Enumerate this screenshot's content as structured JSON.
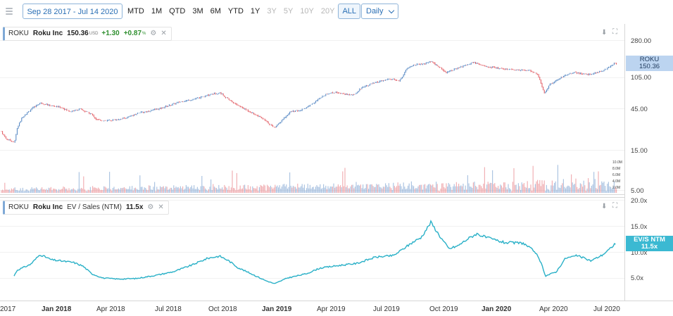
{
  "toolbar": {
    "date_range": "Sep 28 2017 - Jul 14 2020",
    "ranges": [
      "MTD",
      "1M",
      "QTD",
      "3M",
      "6M",
      "YTD",
      "1Y",
      "3Y",
      "5Y",
      "10Y",
      "20Y",
      "ALL"
    ],
    "disabled_ranges": [
      "3Y",
      "5Y",
      "10Y",
      "20Y"
    ],
    "active_range": "ALL",
    "interval": "Daily"
  },
  "price_legend": {
    "ticker": "ROKU",
    "name": "Roku Inc",
    "price": "150.36",
    "currency": "USD",
    "change": "+1.30",
    "change_pct": "+0.87",
    "pct_sign": "%"
  },
  "evs_legend": {
    "ticker": "ROKU",
    "name": "Roku Inc",
    "metric": "EV / Sales (NTM)",
    "value": "11.5x"
  },
  "price_tag": {
    "line1": "ROKU",
    "line2": "150.36"
  },
  "evs_tag": {
    "line1": "EV/S NTM",
    "line2": "11.5x"
  },
  "colors": {
    "up": "#4a7fbf",
    "down": "#e0525a",
    "evs_line": "#29b0c7",
    "tag_price": "#bcd4f0",
    "tag_evs": "#3bb9d2"
  },
  "chart_data": [
    {
      "type": "line",
      "title": "ROKU price (candlestick, log scale)",
      "y_scale": "log",
      "y_ticks": [
        "280.00",
        "105.00",
        "45.00",
        "15.00",
        "5.00"
      ],
      "x_ticks": [
        "2017",
        "Jan 2018",
        "Apr 2018",
        "Jul 2018",
        "Oct 2018",
        "Jan 2019",
        "Apr 2019",
        "Jul 2019",
        "Oct 2019",
        "Jan 2020",
        "Apr 2020",
        "Jul 2020"
      ],
      "x_tick_years": [
        "2017",
        "Jan 2018",
        "Jan 2019",
        "Jan 2020"
      ],
      "series": [
        {
          "name": "ROKU",
          "points": [
            [
              "2017-09-28",
              24
            ],
            [
              "2017-10-05",
              20
            ],
            [
              "2017-10-20",
              18
            ],
            [
              "2017-10-24",
              26
            ],
            [
              "2017-11-01",
              35
            ],
            [
              "2017-11-15",
              43
            ],
            [
              "2017-12-01",
              52
            ],
            [
              "2017-12-20",
              48
            ],
            [
              "2018-01-05",
              46
            ],
            [
              "2018-01-20",
              41
            ],
            [
              "2018-02-05",
              44
            ],
            [
              "2018-02-25",
              38
            ],
            [
              "2018-03-05",
              33
            ],
            [
              "2018-03-20",
              32
            ],
            [
              "2018-04-05",
              33
            ],
            [
              "2018-04-25",
              35
            ],
            [
              "2018-05-10",
              39
            ],
            [
              "2018-06-01",
              42
            ],
            [
              "2018-06-20",
              45
            ],
            [
              "2018-07-05",
              49
            ],
            [
              "2018-07-20",
              53
            ],
            [
              "2018-08-10",
              57
            ],
            [
              "2018-08-25",
              60
            ],
            [
              "2018-09-12",
              66
            ],
            [
              "2018-09-26",
              68
            ],
            [
              "2018-10-08",
              58
            ],
            [
              "2018-10-20",
              51
            ],
            [
              "2018-11-05",
              44
            ],
            [
              "2018-11-20",
              39
            ],
            [
              "2018-12-05",
              34
            ],
            [
              "2018-12-20",
              28
            ],
            [
              "2018-12-25",
              27
            ],
            [
              "2019-01-05",
              32
            ],
            [
              "2019-01-20",
              41
            ],
            [
              "2019-02-05",
              42
            ],
            [
              "2019-02-20",
              48
            ],
            [
              "2019-03-05",
              55
            ],
            [
              "2019-03-20",
              66
            ],
            [
              "2019-04-05",
              69
            ],
            [
              "2019-04-20",
              66
            ],
            [
              "2019-05-05",
              64
            ],
            [
              "2019-05-20",
              80
            ],
            [
              "2019-06-05",
              87
            ],
            [
              "2019-06-20",
              93
            ],
            [
              "2019-07-05",
              99
            ],
            [
              "2019-07-20",
              93
            ],
            [
              "2019-08-01",
              130
            ],
            [
              "2019-08-15",
              145
            ],
            [
              "2019-08-28",
              146
            ],
            [
              "2019-09-10",
              158
            ],
            [
              "2019-09-24",
              135
            ],
            [
              "2019-10-05",
              118
            ],
            [
              "2019-10-20",
              128
            ],
            [
              "2019-11-05",
              141
            ],
            [
              "2019-11-20",
              155
            ],
            [
              "2019-12-05",
              140
            ],
            [
              "2019-12-20",
              135
            ],
            [
              "2020-01-05",
              130
            ],
            [
              "2020-01-20",
              127
            ],
            [
              "2020-02-05",
              125
            ],
            [
              "2020-02-20",
              125
            ],
            [
              "2020-03-05",
              112
            ],
            [
              "2020-03-16",
              67
            ],
            [
              "2020-03-25",
              85
            ],
            [
              "2020-04-05",
              95
            ],
            [
              "2020-04-20",
              110
            ],
            [
              "2020-05-05",
              118
            ],
            [
              "2020-05-20",
              112
            ],
            [
              "2020-06-05",
              113
            ],
            [
              "2020-06-20",
              122
            ],
            [
              "2020-07-05",
              140
            ],
            [
              "2020-07-10",
              150.36
            ]
          ]
        }
      ]
    },
    {
      "type": "bar",
      "title": "Volume",
      "y_ticks": [
        "10.0M",
        "8.0M",
        "6.0M",
        "4.0M",
        "2.0M"
      ],
      "note": "daily volume bars, blue = up day, red = down day"
    },
    {
      "type": "line",
      "title": "EV / Sales (NTM)",
      "y_ticks": [
        "20.0x",
        "15.0x",
        "10.0x",
        "5.0x"
      ],
      "series": [
        {
          "name": "EV/S NTM",
          "points": [
            [
              "2017-09-28",
              4.6
            ],
            [
              "2017-10-15",
              4.5
            ],
            [
              "2017-10-24",
              6.5
            ],
            [
              "2017-11-15",
              7.6
            ],
            [
              "2017-12-01",
              9.5
            ],
            [
              "2017-12-20",
              8.5
            ],
            [
              "2018-01-10",
              8.2
            ],
            [
              "2018-01-25",
              8.0
            ],
            [
              "2018-02-10",
              7.3
            ],
            [
              "2018-02-25",
              5.8
            ],
            [
              "2018-03-15",
              5.0
            ],
            [
              "2018-04-10",
              4.8
            ],
            [
              "2018-05-10",
              4.9
            ],
            [
              "2018-06-10",
              5.5
            ],
            [
              "2018-07-10",
              6.2
            ],
            [
              "2018-08-10",
              7.5
            ],
            [
              "2018-09-05",
              8.8
            ],
            [
              "2018-09-25",
              9.2
            ],
            [
              "2018-10-10",
              8.3
            ],
            [
              "2018-10-25",
              7.0
            ],
            [
              "2018-11-20",
              5.6
            ],
            [
              "2018-12-10",
              4.5
            ],
            [
              "2018-12-25",
              3.9
            ],
            [
              "2019-01-15",
              5.0
            ],
            [
              "2019-02-15",
              5.8
            ],
            [
              "2019-03-10",
              6.9
            ],
            [
              "2019-04-10",
              7.4
            ],
            [
              "2019-05-10",
              7.8
            ],
            [
              "2019-06-10",
              9.0
            ],
            [
              "2019-07-10",
              9.3
            ],
            [
              "2019-07-25",
              10.5
            ],
            [
              "2019-08-10",
              11.8
            ],
            [
              "2019-08-25",
              12.8
            ],
            [
              "2019-09-10",
              15.7
            ],
            [
              "2019-09-25",
              13.0
            ],
            [
              "2019-10-10",
              10.6
            ],
            [
              "2019-10-25",
              11.2
            ],
            [
              "2019-11-10",
              12.5
            ],
            [
              "2019-11-25",
              13.5
            ],
            [
              "2019-12-10",
              12.8
            ],
            [
              "2020-01-10",
              11.8
            ],
            [
              "2020-02-10",
              11.7
            ],
            [
              "2020-03-01",
              10.0
            ],
            [
              "2020-03-12",
              7.5
            ],
            [
              "2020-03-18",
              5.4
            ],
            [
              "2020-04-05",
              6.2
            ],
            [
              "2020-04-20",
              8.8
            ],
            [
              "2020-05-10",
              9.3
            ],
            [
              "2020-06-01",
              8.3
            ],
            [
              "2020-06-20",
              9.4
            ],
            [
              "2020-07-05",
              10.8
            ],
            [
              "2020-07-10",
              11.5
            ]
          ]
        }
      ]
    }
  ]
}
